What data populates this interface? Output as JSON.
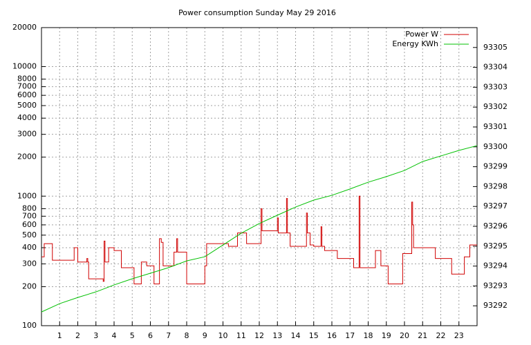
{
  "chart_data": {
    "type": "line",
    "title": "Power consumption Sunday May 29 2016",
    "xlim": [
      0,
      24
    ],
    "xticks": [
      1,
      2,
      3,
      4,
      5,
      6,
      7,
      8,
      9,
      10,
      11,
      12,
      13,
      14,
      15,
      16,
      17,
      18,
      19,
      20,
      21,
      22,
      23
    ],
    "ylim": [
      100,
      20000
    ],
    "yscale": "log",
    "yticks": [
      100,
      200,
      300,
      400,
      500,
      600,
      700,
      800,
      1000,
      2000,
      3000,
      4000,
      5000,
      6000,
      7000,
      8000,
      10000,
      20000
    ],
    "y2lim": [
      93291,
      93306
    ],
    "y2ticks": [
      93292,
      93293,
      93294,
      93295,
      93296,
      93297,
      93298,
      93299,
      93300,
      93301,
      93302,
      93303,
      93304,
      93305
    ],
    "grid": true,
    "legend": "top-right",
    "series": [
      {
        "name": "Power W",
        "color": "#d00000",
        "step": "post",
        "x": [
          0,
          0.15,
          0.6,
          1.8,
          2.0,
          2.5,
          2.55,
          2.6,
          3.4,
          3.45,
          3.5,
          3.7,
          4.0,
          4.4,
          5.1,
          5.5,
          5.8,
          6.2,
          6.5,
          6.6,
          6.7,
          7.3,
          7.45,
          7.5,
          8.0,
          8.9,
          9.0,
          9.1,
          10.3,
          10.8,
          11.3,
          11.9,
          12.1,
          12.15,
          12.3,
          13.0,
          13.05,
          13.1,
          13.5,
          13.55,
          13.7,
          14.6,
          14.65,
          14.7,
          14.8,
          15.0,
          15.4,
          15.45,
          15.6,
          16.3,
          17.2,
          17.5,
          17.55,
          17.6,
          18.4,
          18.7,
          19.1,
          19.9,
          20.4,
          20.45,
          20.5,
          21.7,
          22.6,
          23.3,
          23.6,
          24
        ],
        "values": [
          340,
          430,
          320,
          400,
          310,
          330,
          310,
          230,
          220,
          450,
          310,
          400,
          380,
          280,
          210,
          310,
          290,
          210,
          470,
          440,
          290,
          370,
          470,
          370,
          210,
          210,
          290,
          430,
          410,
          520,
          430,
          430,
          800,
          540,
          540,
          680,
          520,
          520,
          960,
          520,
          410,
          740,
          520,
          520,
          420,
          410,
          580,
          410,
          380,
          330,
          280,
          1000,
          280,
          280,
          380,
          290,
          210,
          360,
          900,
          600,
          400,
          330,
          250,
          340,
          420,
          420
        ]
      },
      {
        "name": "Energy KWh",
        "color": "#00c000",
        "axis": "y2",
        "x": [
          0,
          1,
          2,
          3,
          4,
          5,
          6,
          7,
          8,
          9,
          10,
          11,
          12,
          13,
          14,
          15,
          16,
          17,
          18,
          19,
          20,
          21,
          22,
          23,
          24
        ],
        "values": [
          93291.69,
          93292.11,
          93292.42,
          93292.7,
          93293.05,
          93293.36,
          93293.64,
          93293.92,
          93294.26,
          93294.47,
          93295.06,
          93295.65,
          93296.14,
          93296.56,
          93296.97,
          93297.32,
          93297.56,
          93297.88,
          93298.22,
          93298.5,
          93298.81,
          93299.26,
          93299.54,
          93299.82,
          93300.06
        ]
      }
    ]
  }
}
